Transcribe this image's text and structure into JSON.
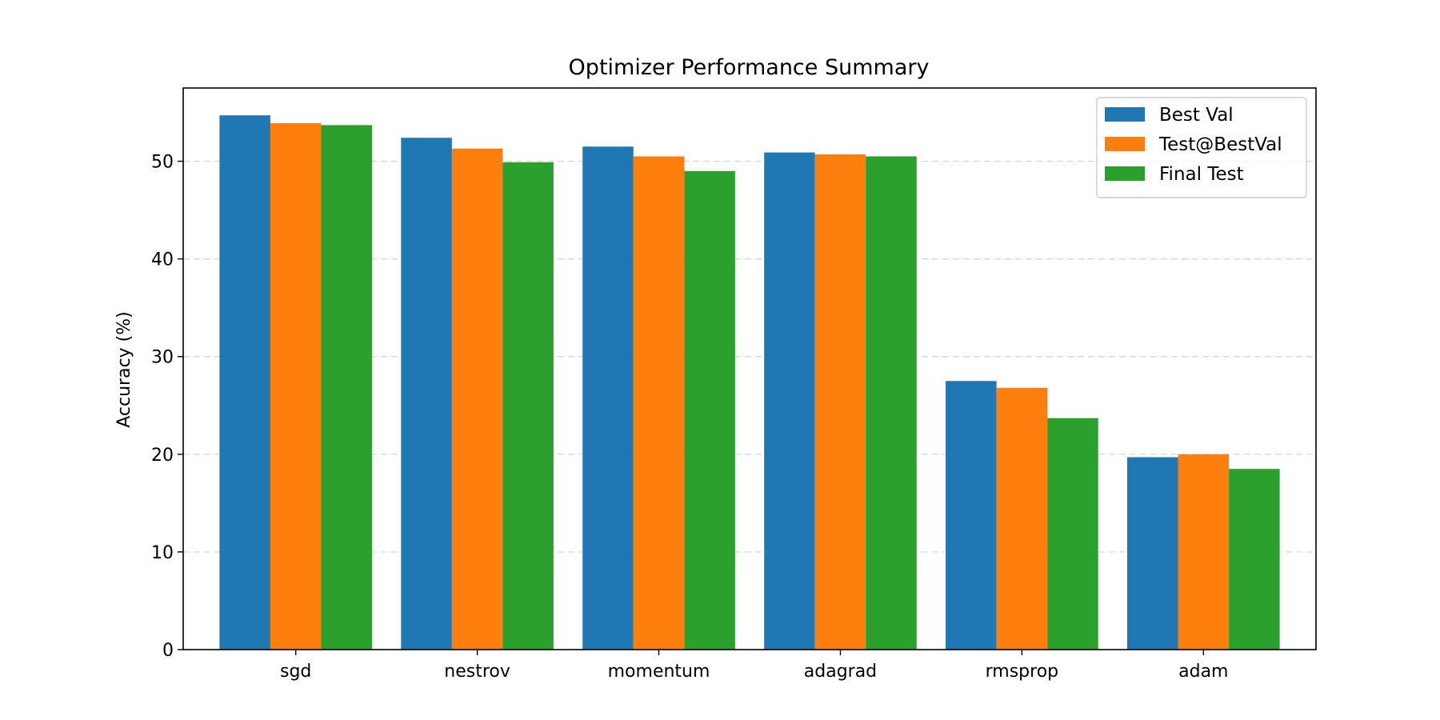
{
  "chart_data": {
    "type": "bar",
    "title": "Optimizer Performance Summary",
    "xlabel": "",
    "ylabel": "Accuracy (%)",
    "ylim": [
      0,
      57.5
    ],
    "yticks": [
      0,
      10,
      20,
      30,
      40,
      50
    ],
    "grid": "y-dashed",
    "legend_position": "top-right",
    "categories": [
      "sgd",
      "nestrov",
      "momentum",
      "adagrad",
      "rmsprop",
      "adam"
    ],
    "series": [
      {
        "name": "Best Val",
        "color": "#1f77b4",
        "values": [
          54.7,
          52.4,
          51.5,
          50.9,
          27.5,
          19.7
        ]
      },
      {
        "name": "Test@BestVal",
        "color": "#ff7f0e",
        "values": [
          53.9,
          51.3,
          50.5,
          50.7,
          26.8,
          20.0
        ]
      },
      {
        "name": "Final Test",
        "color": "#2ca02c",
        "values": [
          53.7,
          49.9,
          49.0,
          50.5,
          23.7,
          18.5
        ]
      }
    ]
  }
}
